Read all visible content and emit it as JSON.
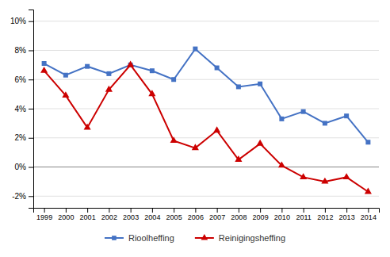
{
  "chart_data": {
    "type": "line",
    "categories": [
      "1999",
      "2000",
      "2001",
      "2002",
      "2003",
      "2004",
      "2005",
      "2006",
      "2007",
      "2008",
      "2009",
      "2010",
      "2011",
      "2012",
      "2013",
      "2014"
    ],
    "series": [
      {
        "name": "Rioolheffing",
        "color": "#4472C4",
        "marker": "square",
        "values": [
          7.1,
          6.3,
          6.9,
          6.4,
          7.0,
          6.6,
          6.0,
          8.1,
          6.8,
          5.5,
          5.7,
          3.3,
          3.8,
          3.0,
          3.5,
          1.7
        ]
      },
      {
        "name": "Reinigingsheffing",
        "color": "#CC0000",
        "marker": "triangle",
        "values": [
          6.6,
          4.9,
          2.7,
          5.3,
          7.0,
          5.0,
          1.8,
          1.3,
          2.5,
          0.5,
          1.6,
          0.1,
          -0.7,
          -1.0,
          -0.7,
          -1.7
        ]
      }
    ],
    "ylim": [
      -2.8,
      10.8
    ],
    "yticks": [
      {
        "value": -2,
        "label": "-2%"
      },
      {
        "value": 0,
        "label": "0%"
      },
      {
        "value": 2,
        "label": "2%"
      },
      {
        "value": 4,
        "label": "4%"
      },
      {
        "value": 6,
        "label": "6%"
      },
      {
        "value": 8,
        "label": "8%"
      },
      {
        "value": 10,
        "label": "10%"
      }
    ],
    "grid": true,
    "legend": "bottom"
  }
}
